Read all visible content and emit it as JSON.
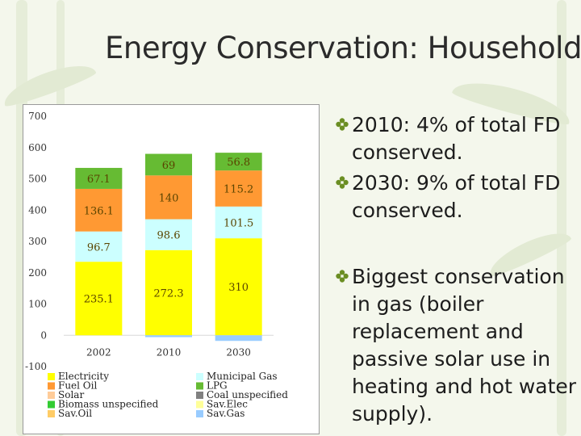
{
  "slide": {
    "title": "Energy Conservation: Household",
    "bullet_glyph": "diamond-flower-bullet-icon",
    "accent_color": "#6b8e23",
    "bullets": [
      "2010: 4% of total FD conserved.",
      "2030: 9% of total FD conserved.",
      "Biggest conservation in gas (boiler replacement and passive solar use in heating and hot water supply)."
    ]
  },
  "chart_data": {
    "type": "bar",
    "stacked": true,
    "title": "",
    "xlabel": "",
    "ylabel": "",
    "ylim": [
      -100,
      700
    ],
    "yticks": [
      -100,
      0,
      100,
      200,
      300,
      400,
      500,
      600,
      700
    ],
    "categories": [
      "2002",
      "2010",
      "2030"
    ],
    "series": [
      {
        "name": "Electricity",
        "color": "#ffff00",
        "values": [
          235.1,
          272.3,
          310
        ],
        "labels": [
          "235.1",
          "272.3",
          "310"
        ]
      },
      {
        "name": "Municipal Gas",
        "color": "#ccffff",
        "values": [
          96.7,
          98.6,
          101.5
        ],
        "labels": [
          "96.7",
          "98.6",
          "101.5"
        ]
      },
      {
        "name": "Fuel Oil",
        "color": "#ff9933",
        "values": [
          136.1,
          140,
          115.2
        ],
        "labels": [
          "136.1",
          "140",
          "115.2"
        ]
      },
      {
        "name": "LPG",
        "color": "#66bb33",
        "values": [
          67.1,
          69,
          56.8
        ],
        "labels": [
          "67.1",
          "69",
          "56.8"
        ]
      },
      {
        "name": "Solar",
        "color": "#ffcc99",
        "values": [
          0,
          0,
          0
        ],
        "labels": [
          "",
          "",
          ""
        ]
      },
      {
        "name": "Coal unspecified",
        "color": "#808080",
        "values": [
          0,
          0,
          0
        ],
        "labels": [
          "",
          "",
          ""
        ]
      },
      {
        "name": "Biomass unspecified",
        "color": "#33cc33",
        "values": [
          0,
          0,
          0
        ],
        "labels": [
          "",
          "",
          ""
        ]
      },
      {
        "name": "Sav.Elec",
        "color": "#ffff99",
        "values": [
          0,
          0,
          0
        ],
        "labels": [
          "",
          "",
          ""
        ]
      },
      {
        "name": "Sav.Oil",
        "color": "#ffcc66",
        "values": [
          0,
          0,
          0
        ],
        "labels": [
          "",
          "",
          ""
        ]
      },
      {
        "name": "Sav.Gas",
        "color": "#99ccff",
        "values": [
          0,
          -6,
          -18
        ],
        "labels": [
          "",
          "",
          ""
        ]
      }
    ],
    "legend": {
      "placement": "bottom",
      "columns": 2,
      "entries": [
        "Electricity",
        "Municipal Gas",
        "Fuel Oil",
        "LPG",
        "Solar",
        "Coal unspecified",
        "Biomass unspecified",
        "Sav.Elec",
        "Sav.Oil",
        "Sav.Gas"
      ]
    }
  }
}
